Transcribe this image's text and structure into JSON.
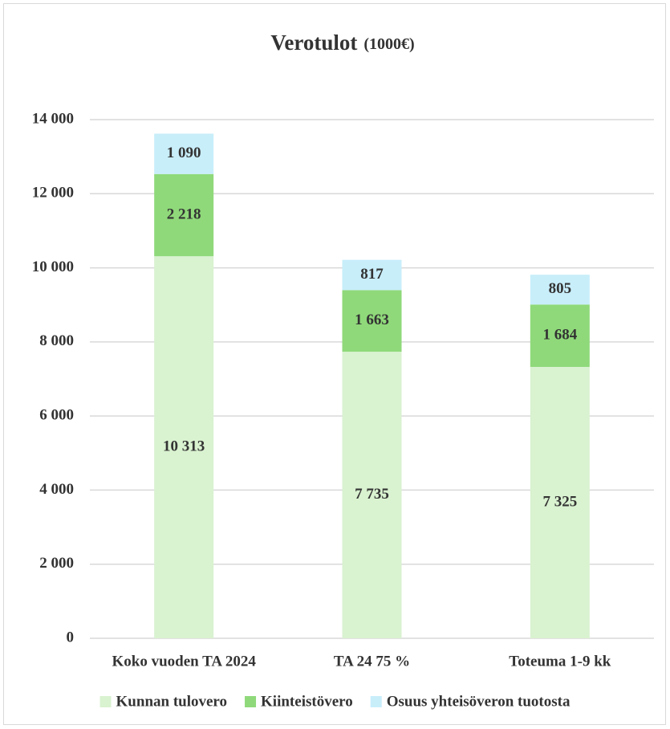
{
  "chart_data": {
    "type": "stacked_bar",
    "title": "Verotulot",
    "subtitle": "(1000€)",
    "categories": [
      "Koko vuoden TA 2024",
      "TA 24 75 %",
      "Toteuma 1-9 kk"
    ],
    "series": [
      {
        "name": "Kunnan tulovero",
        "color": "#d9f2d0",
        "values": [
          10313,
          7735,
          7325
        ],
        "value_labels": [
          "10 313",
          "7 735",
          "7 325"
        ]
      },
      {
        "name": "Kiinteistövero",
        "color": "#8fd97a",
        "values": [
          2218,
          1663,
          1684
        ],
        "value_labels": [
          "2 218",
          "1 663",
          "1 684"
        ]
      },
      {
        "name": "Osuus yhteisöveron tuotosta",
        "color": "#c8eefa",
        "values": [
          1090,
          817,
          805
        ],
        "value_labels": [
          "1 090",
          "817",
          "805"
        ]
      }
    ],
    "ylim": [
      0,
      14000
    ],
    "yticks": [
      0,
      {
        "value": 2000,
        "label": "2 000"
      },
      {
        "value": 4000,
        "label": "4 000"
      },
      {
        "value": 6000,
        "label": "6 000"
      },
      {
        "value": 8000,
        "label": "8 000"
      },
      {
        "value": 10000,
        "label": "10 000"
      },
      {
        "value": 12000,
        "label": "12 000"
      },
      {
        "value": 14000,
        "label": "14 000"
      }
    ],
    "grid": true,
    "legend": "bottom"
  }
}
